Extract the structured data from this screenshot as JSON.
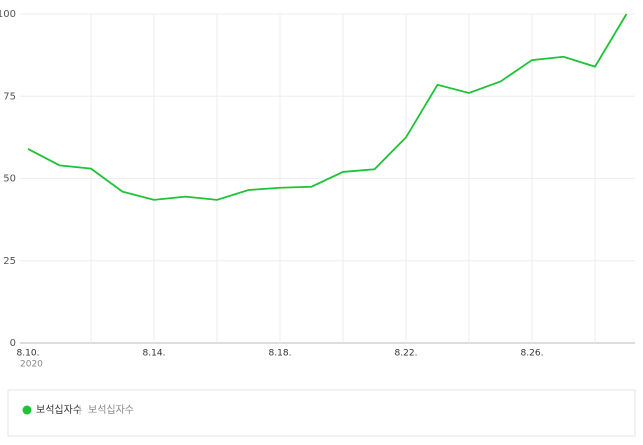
{
  "chart_data": {
    "type": "line",
    "categories": [
      "8.10.",
      null,
      null,
      null,
      "8.14.",
      null,
      null,
      null,
      "8.18.",
      null,
      null,
      null,
      "8.22.",
      null,
      null,
      null,
      "8.26.",
      null,
      null,
      null
    ],
    "year_label": "2020",
    "series": [
      {
        "name": "보석십자수",
        "color": "#1ec337",
        "values": [
          59,
          54,
          53,
          46,
          43.5,
          44.5,
          43.5,
          46.5,
          47.2,
          47.5,
          52,
          52.8,
          62.5,
          78.5,
          76,
          79.5,
          86,
          87,
          84,
          100
        ]
      }
    ],
    "legend_description": "보석십자수",
    "ylim": [
      0,
      100
    ],
    "yticks": [
      0,
      25,
      50,
      75,
      100
    ],
    "grid": true
  }
}
